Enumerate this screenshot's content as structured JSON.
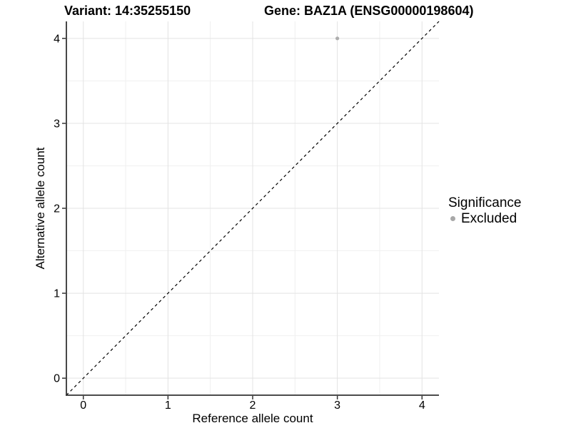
{
  "chart_data": {
    "type": "scatter",
    "title_left": "Variant: 14:35255150",
    "title_right": "Gene: BAZ1A (ENSG00000198604)",
    "xlabel": "Reference allele count",
    "ylabel": "Alternative allele count",
    "xlim": [
      -0.2,
      4.2
    ],
    "ylim": [
      -0.2,
      4.2
    ],
    "xticks": [
      0,
      1,
      2,
      3,
      4
    ],
    "yticks": [
      0,
      1,
      2,
      3,
      4
    ],
    "xminor": [
      0.5,
      1.5,
      2.5,
      3.5
    ],
    "yminor": [
      0.5,
      1.5,
      2.5,
      3.5
    ],
    "grid": "major+minor",
    "legend_position": "right",
    "series": [
      {
        "name": "Excluded",
        "color": "#adadad",
        "point_radius": 2.6,
        "points": [
          [
            3,
            4
          ]
        ]
      }
    ],
    "reference_line": {
      "type": "identity",
      "slope": 1,
      "intercept": 0,
      "style": "dashed",
      "color": "#000000"
    }
  },
  "legend": {
    "title": "Significance",
    "items": [
      {
        "label": "Excluded",
        "color": "#a8a8a8"
      }
    ]
  },
  "colors": {
    "background": "#ffffff",
    "grid_major": "#e3e3e3",
    "grid_minor": "#f0f0f0",
    "axis": "#333333",
    "text": "#000000"
  }
}
